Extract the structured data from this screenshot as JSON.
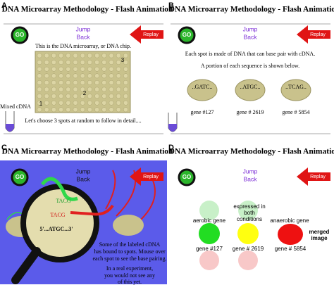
{
  "panels": [
    {
      "label": "A",
      "title": "DNA Microarray Methodology - Flash Animation",
      "go": "GO",
      "jump": [
        "Jump",
        "Back"
      ],
      "replay": "Replay",
      "caption": "This is the DNA microarray, or DNA chip.",
      "spot_numbers": [
        "1",
        "2",
        "3"
      ],
      "tube_label": "Mixed cDNA",
      "footer": "Let's choose 3 spots at random to follow in detail...."
    },
    {
      "label": "B",
      "title": "DNA Microarray Methodology - Flash Animation",
      "go": "GO",
      "jump": [
        "Jump",
        "Back"
      ],
      "replay": "Replay",
      "captions": [
        "Each spot is made of DNA that can base pair with cDNA.",
        "A portion of each sequence is shown below."
      ],
      "sequences": [
        "..GATC..",
        "..ATGC..",
        "..TCAG.."
      ],
      "genes": [
        "gene #127",
        "gene # 2619",
        "gene # 5854"
      ]
    },
    {
      "label": "C",
      "title": "DNA Microarray Methodology - Flash Animation",
      "go": "GO",
      "jump": [
        "Jump",
        "Back"
      ],
      "replay": "Replay",
      "probe": [
        "TACG",
        "TACG"
      ],
      "strand": "5'...ATGC...3'",
      "note1": [
        "Some of the labeled cDNA",
        "has bound to spots. Mouse over",
        "each spot to see the base pairing."
      ],
      "note2": [
        "In a real experiment,",
        "you would not see any",
        "of this yet."
      ]
    },
    {
      "label": "D",
      "title": "DNA Microarray Methodology - Flash Animation",
      "go": "GO",
      "jump": [
        "Jump",
        "Back"
      ],
      "replay": "Replay",
      "aerobic": "aerobic gene",
      "both": [
        "expressed in",
        "both",
        "conditions"
      ],
      "anaerobic": "anaerobic gene",
      "merged": [
        "merged",
        "image"
      ],
      "genes": [
        "gene #127",
        "gene # 2619",
        "gene # 5854"
      ]
    }
  ]
}
